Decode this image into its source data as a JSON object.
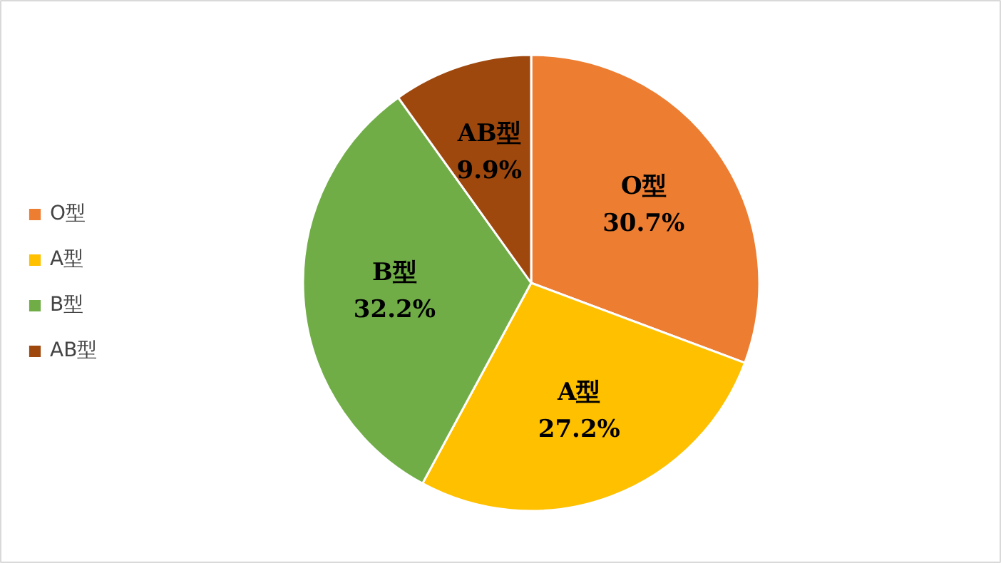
{
  "chart_data": {
    "type": "pie",
    "categories": [
      "O型",
      "A型",
      "B型",
      "AB型"
    ],
    "values": [
      30.7,
      27.2,
      32.2,
      9.9
    ],
    "colors": [
      "#ed7d31",
      "#ffc000",
      "#70ad47",
      "#9e480e"
    ],
    "value_labels": [
      "30.7%",
      "27.2%",
      "32.2%",
      "9.9%"
    ],
    "legend": "left"
  }
}
